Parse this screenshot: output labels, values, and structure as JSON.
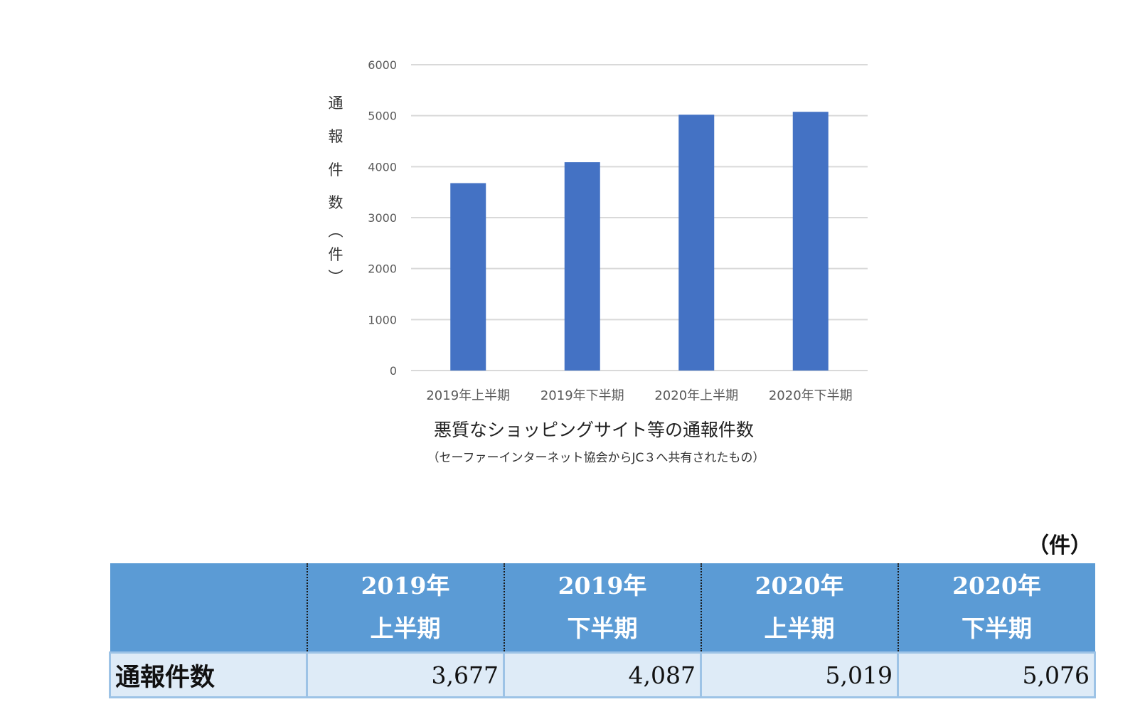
{
  "chart_data": {
    "type": "bar",
    "categories": [
      "2019年上半期",
      "2019年下半期",
      "2020年上半期",
      "2020年下半期"
    ],
    "values": [
      3677,
      4087,
      5019,
      5076
    ],
    "title": "悪質なショッピングサイト等の通報件数",
    "subtitle": "（セーファーインターネット協会からJC３へ共有されたもの）",
    "ylabel": "通報件数（件）",
    "yticks": [
      0,
      1000,
      2000,
      3000,
      4000,
      5000,
      6000
    ],
    "ylim": [
      0,
      6000
    ],
    "grid": true,
    "bar_color": "#4472c4"
  },
  "table": {
    "unit": "（件）",
    "headers": [
      {
        "line1": "2019年",
        "line2": "上半期"
      },
      {
        "line1": "2019年",
        "line2": "下半期"
      },
      {
        "line1": "2020年",
        "line2": "上半期"
      },
      {
        "line1": "2020年",
        "line2": "下半期"
      }
    ],
    "row_label": "通報件数",
    "values": [
      "3,677",
      "4,087",
      "5,019",
      "5,076"
    ],
    "header_color": "#5b9bd5",
    "row_color": "#deebf7"
  }
}
